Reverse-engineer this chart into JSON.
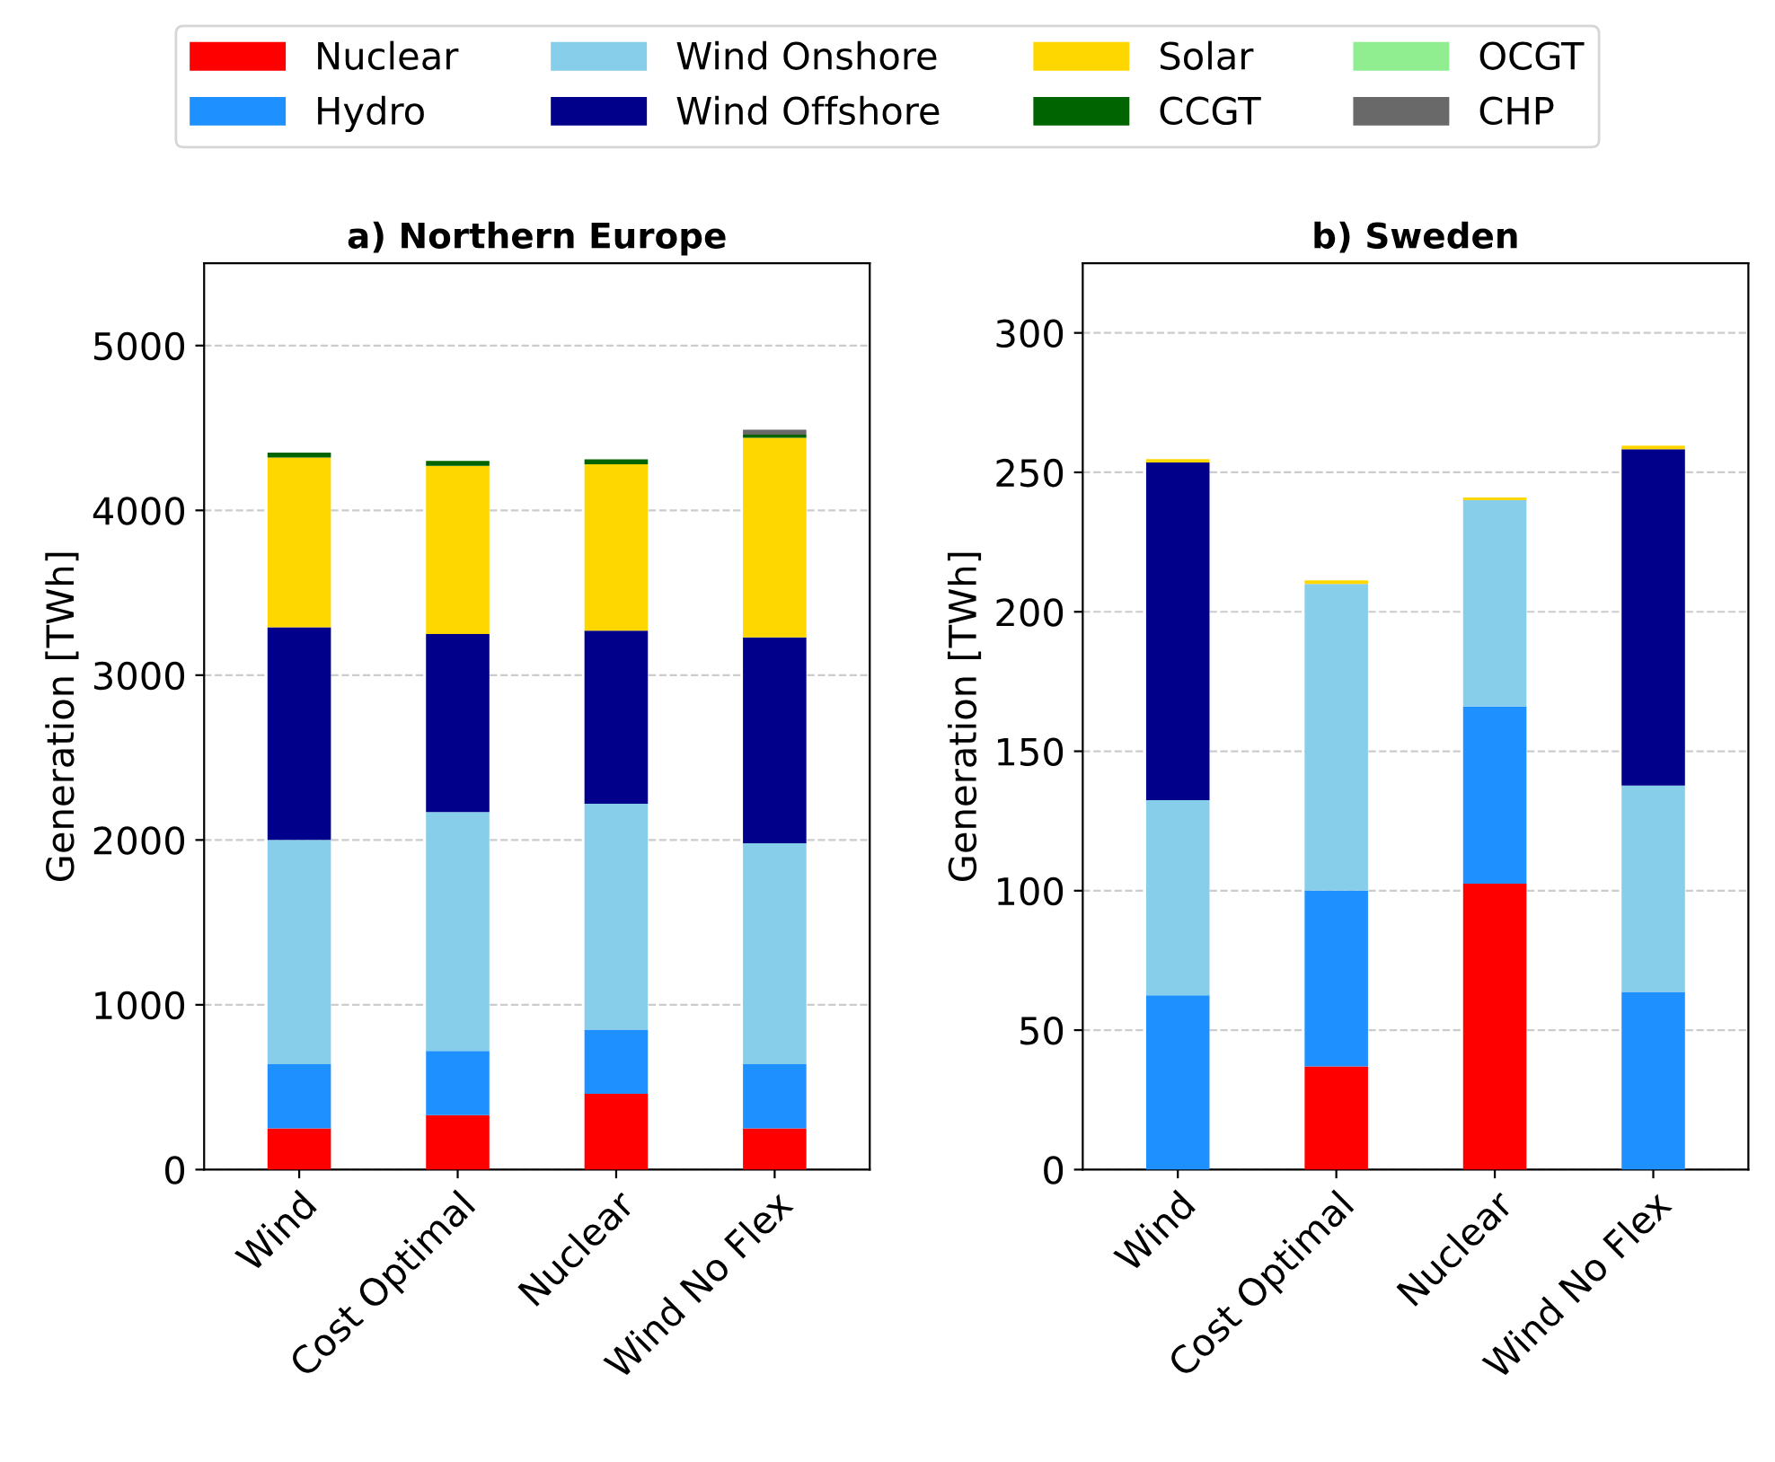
{
  "chart_data": [
    {
      "type": "bar",
      "stacked": true,
      "title": "a) Northern Europe",
      "ylabel": "Generation [TWh]",
      "categories": [
        "Wind",
        "Cost Optimal",
        "Nuclear",
        "Wind No Flex"
      ],
      "ylim": [
        0,
        5500
      ],
      "yticks": [
        0,
        1000,
        2000,
        3000,
        4000,
        5000
      ],
      "grid": "y",
      "legend": "top",
      "series": [
        {
          "name": "Nuclear",
          "color": "#ff0000",
          "values": [
            250,
            330,
            460,
            250
          ]
        },
        {
          "name": "Hydro",
          "color": "#1e90ff",
          "values": [
            390,
            390,
            390,
            390
          ]
        },
        {
          "name": "Wind Onshore",
          "color": "#87ceeb",
          "values": [
            1360,
            1450,
            1370,
            1340
          ]
        },
        {
          "name": "Wind Offshore",
          "color": "#00008b",
          "values": [
            1290,
            1080,
            1050,
            1250
          ]
        },
        {
          "name": "Solar",
          "color": "#ffd700",
          "values": [
            1030,
            1020,
            1010,
            1210
          ]
        },
        {
          "name": "CCGT",
          "color": "#006400",
          "values": [
            30,
            30,
            30,
            20
          ]
        },
        {
          "name": "OCGT",
          "color": "#90ee90",
          "values": [
            0,
            0,
            0,
            0
          ]
        },
        {
          "name": "CHP",
          "color": "#696969",
          "values": [
            0,
            0,
            0,
            30
          ]
        }
      ]
    },
    {
      "type": "bar",
      "stacked": true,
      "title": "b) Sweden",
      "ylabel": "Generation [TWh]",
      "categories": [
        "Wind",
        "Cost Optimal",
        "Nuclear",
        "Wind No Flex"
      ],
      "ylim": [
        0,
        325
      ],
      "yticks": [
        0,
        50,
        100,
        150,
        200,
        250,
        300
      ],
      "grid": "y",
      "series": [
        {
          "color": "#ff0000",
          "values": [
            0,
            37,
            102.5,
            0
          ]
        },
        {
          "color": "#1e90ff",
          "values": [
            62.5,
            63,
            63.5,
            63.7
          ]
        },
        {
          "color": "#87ceeb",
          "values": [
            70,
            110,
            74,
            74
          ]
        },
        {
          "color": "#00008b",
          "values": [
            121,
            0,
            0,
            120.6
          ]
        },
        {
          "color": "#ffd700",
          "values": [
            1.2,
            1.3,
            1,
            1.3
          ]
        }
      ]
    }
  ]
}
